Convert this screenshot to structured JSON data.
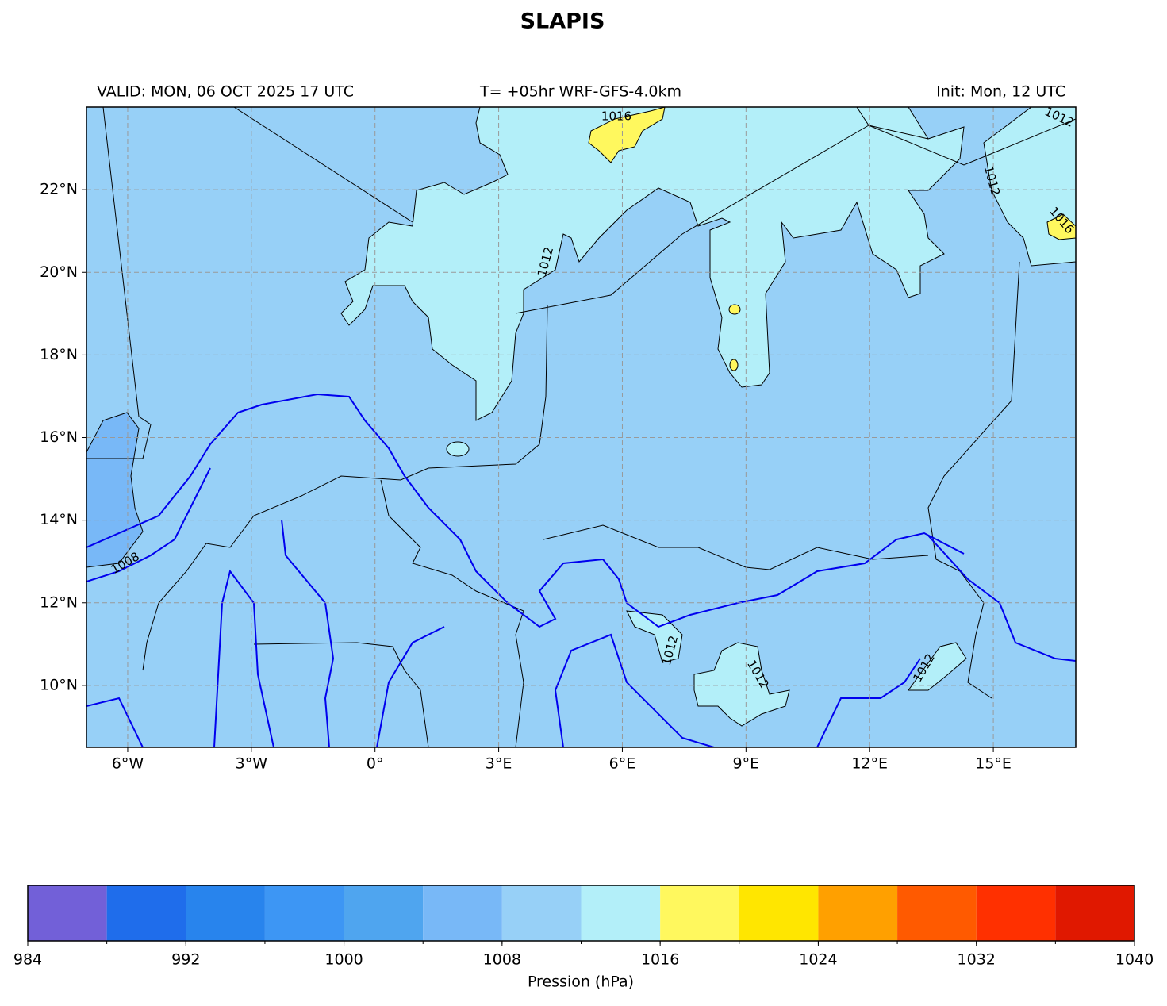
{
  "title": "SLAPIS",
  "header": {
    "valid": "VALID: MON, 06 OCT 2025 17 UTC",
    "forecast": "T= +05hr WRF-GFS-4.0km",
    "init": "Init: Mon, 12 UTC"
  },
  "map": {
    "lon_range": [
      -7,
      17
    ],
    "lat_range": [
      8.5,
      24
    ],
    "xticks": [
      {
        "value": -6,
        "label": "6°W"
      },
      {
        "value": -3,
        "label": "3°W"
      },
      {
        "value": 0,
        "label": "0°"
      },
      {
        "value": 3,
        "label": "3°E"
      },
      {
        "value": 6,
        "label": "6°E"
      },
      {
        "value": 9,
        "label": "9°E"
      },
      {
        "value": 12,
        "label": "12°E"
      },
      {
        "value": 15,
        "label": "15°E"
      }
    ],
    "yticks": [
      {
        "value": 10,
        "label": "10°N"
      },
      {
        "value": 12,
        "label": "12°N"
      },
      {
        "value": 14,
        "label": "14°N"
      },
      {
        "value": 16,
        "label": "16°N"
      },
      {
        "value": 18,
        "label": "18°N"
      },
      {
        "value": 20,
        "label": "20°N"
      },
      {
        "value": 22,
        "label": "22°N"
      }
    ],
    "grid": true,
    "contour_labels": [
      "1016",
      "1012",
      "1008",
      "1012",
      "1012",
      "1012",
      "1016",
      "1012",
      "1012"
    ]
  },
  "colorbar": {
    "label": "Pression (hPa)",
    "levels": [
      984,
      988,
      992,
      996,
      1000,
      1004,
      1008,
      1012,
      1016,
      1020,
      1024,
      1028,
      1032,
      1036,
      1040
    ],
    "ticks": [
      984,
      992,
      1000,
      1008,
      1016,
      1024,
      1032,
      1040
    ],
    "colors": [
      "#7260d8",
      "#1f6deb",
      "#2884ed",
      "#3d96f4",
      "#4fa5ef",
      "#78b8f7",
      "#97d0f7",
      "#b3eff9",
      "#fff85e",
      "#ffe600",
      "#ffa000",
      "#ff5a00",
      "#ff3000",
      "#e01800"
    ]
  }
}
